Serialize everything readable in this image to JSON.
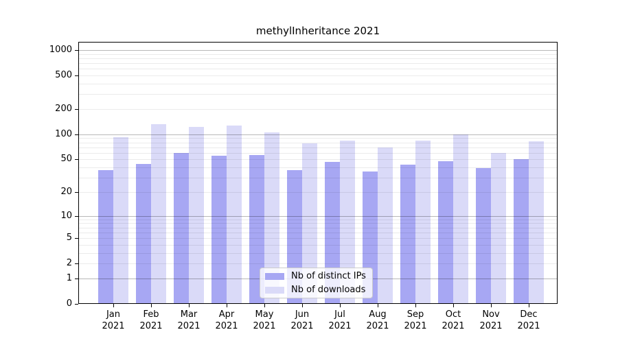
{
  "chart_data": {
    "type": "bar",
    "title": "methylInheritance 2021",
    "categories": [
      "Jan 2021",
      "Feb 2021",
      "Mar 2021",
      "Apr 2021",
      "May 2021",
      "Jun 2021",
      "Jul 2021",
      "Aug 2021",
      "Sep 2021",
      "Oct 2021",
      "Nov 2021",
      "Dec 2021"
    ],
    "series": [
      {
        "name": "Nb of distinct IPs",
        "color": "#a7a7f3",
        "values": [
          37,
          44,
          60,
          55,
          56,
          37,
          47,
          36,
          43,
          48,
          39,
          50
        ]
      },
      {
        "name": "Nb of downloads",
        "color": "#dadaf8",
        "values": [
          93,
          133,
          123,
          127,
          106,
          78,
          84,
          70,
          84,
          100,
          60,
          83
        ]
      }
    ],
    "xlabel": "",
    "ylabel": "",
    "yscale": "log10(value+1)",
    "ylim": [
      0,
      1250
    ],
    "yticks": [
      0,
      1,
      2,
      5,
      10,
      20,
      50,
      100,
      200,
      500,
      1000
    ],
    "grid": {
      "horizontal": true,
      "major_at": [
        1,
        10,
        100,
        1000
      ],
      "minor_per_decade": [
        2,
        3,
        4,
        5,
        6,
        7,
        8,
        9
      ]
    },
    "legend": {
      "position": "inside-bottom-center",
      "items": [
        "Nb of distinct IPs",
        "Nb of downloads"
      ]
    },
    "colors": {
      "axis": "#000000",
      "major_grid": "#b7b7b7",
      "minor_grid": "#ebebeb",
      "legend_border": "#cccccc"
    }
  }
}
